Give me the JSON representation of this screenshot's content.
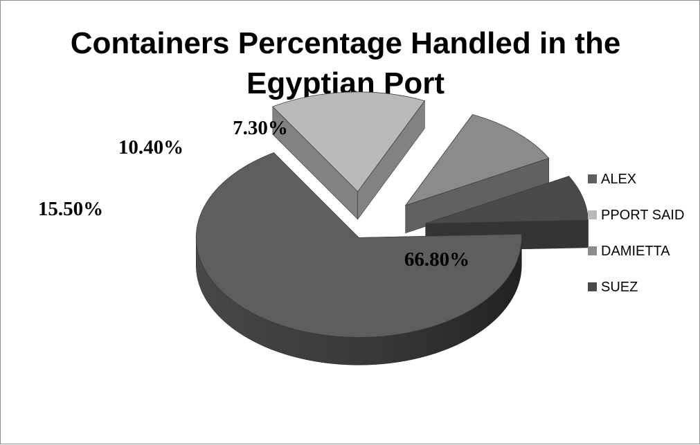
{
  "chart_data": {
    "type": "pie",
    "style": "3d-exploded",
    "title": "Containers Percentage Handled in the Egyptian Port",
    "title_lines": [
      "Containers Percentage Handled in the",
      "Egyptian Port"
    ],
    "categories": [
      "ALEX",
      "PPORT SAID",
      "DAMIETTA",
      "SUEZ"
    ],
    "values": [
      66.8,
      15.5,
      10.4,
      7.3
    ],
    "data_labels": [
      "66.80%",
      "15.50%",
      "10.40%",
      "7.30%"
    ],
    "colors": [
      "#5e5e5e",
      "#b9b9b9",
      "#8b8b8b",
      "#4a4a4a"
    ],
    "legend_position": "right"
  }
}
